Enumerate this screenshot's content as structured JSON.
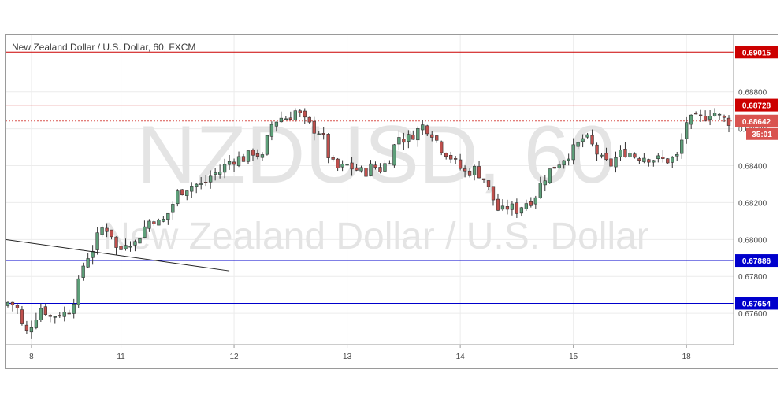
{
  "chart_data": {
    "type": "candlestick",
    "title": "New Zealand Dollar / U.S. Dollar, 60, FXCM",
    "watermark_symbol": "NZDUSD, 60",
    "watermark_name": "New Zealand Dollar / U.S. Dollar",
    "ylim": [
      0.6743,
      0.6911
    ],
    "y_ticks": [
      {
        "value": 0.676,
        "label": "0.67600"
      },
      {
        "value": 0.678,
        "label": "0.67800"
      },
      {
        "value": 0.68,
        "label": "0.68000"
      },
      {
        "value": 0.682,
        "label": "0.68200"
      },
      {
        "value": 0.684,
        "label": "0.68400"
      },
      {
        "value": 0.686,
        "label": "0.68600"
      },
      {
        "value": 0.688,
        "label": "0.68800"
      }
    ],
    "x_ticks": [
      {
        "index": 5,
        "label": "8"
      },
      {
        "index": 24,
        "label": "11"
      },
      {
        "index": 48,
        "label": "12"
      },
      {
        "index": 72,
        "label": "13"
      },
      {
        "index": 96,
        "label": "14"
      },
      {
        "index": 120,
        "label": "15"
      },
      {
        "index": 144,
        "label": "18"
      }
    ],
    "bar_count": 154,
    "anchors": [
      [
        0,
        0.6766
      ],
      [
        2,
        0.6764
      ],
      [
        4,
        0.6748
      ],
      [
        6,
        0.6756
      ],
      [
        8,
        0.6764
      ],
      [
        10,
        0.6758
      ],
      [
        12,
        0.676
      ],
      [
        14,
        0.676
      ],
      [
        16,
        0.677
      ],
      [
        18,
        0.6788
      ],
      [
        20,
        0.6795
      ],
      [
        22,
        0.6806
      ],
      [
        24,
        0.6806
      ],
      [
        26,
        0.6792
      ],
      [
        28,
        0.68
      ],
      [
        30,
        0.6798
      ],
      [
        32,
        0.6806
      ],
      [
        34,
        0.6812
      ],
      [
        36,
        0.6808
      ],
      [
        38,
        0.6815
      ],
      [
        40,
        0.6825
      ],
      [
        42,
        0.6828
      ],
      [
        44,
        0.683
      ],
      [
        46,
        0.6829
      ],
      [
        48,
        0.6835
      ],
      [
        50,
        0.6837
      ],
      [
        52,
        0.6842
      ],
      [
        54,
        0.6844
      ],
      [
        56,
        0.6844
      ],
      [
        58,
        0.6848
      ],
      [
        60,
        0.6844
      ],
      [
        62,
        0.6862
      ],
      [
        64,
        0.6866
      ],
      [
        66,
        0.6866
      ],
      [
        68,
        0.687
      ],
      [
        70,
        0.6864
      ],
      [
        72,
        0.686
      ],
      [
        74,
        0.6858
      ],
      [
        76,
        0.6842
      ],
      [
        78,
        0.6838
      ],
      [
        80,
        0.684
      ],
      [
        82,
        0.6838
      ],
      [
        84,
        0.6836
      ],
      [
        86,
        0.684
      ],
      [
        88,
        0.6838
      ],
      [
        90,
        0.6844
      ],
      [
        92,
        0.6856
      ],
      [
        94,
        0.6854
      ],
      [
        96,
        0.6858
      ],
      [
        98,
        0.6862
      ],
      [
        100,
        0.6858
      ],
      [
        102,
        0.685
      ],
      [
        104,
        0.6846
      ],
      [
        106,
        0.684
      ],
      [
        108,
        0.6836
      ],
      [
        110,
        0.6838
      ],
      [
        112,
        0.6834
      ],
      [
        114,
        0.6824
      ],
      [
        116,
        0.6814
      ],
      [
        118,
        0.6818
      ],
      [
        120,
        0.6816
      ],
      [
        122,
        0.682
      ],
      [
        124,
        0.6822
      ],
      [
        126,
        0.6832
      ],
      [
        128,
        0.6838
      ],
      [
        130,
        0.6842
      ],
      [
        132,
        0.6846
      ],
      [
        134,
        0.685
      ],
      [
        136,
        0.6856
      ],
      [
        138,
        0.685
      ],
      [
        140,
        0.6843
      ],
      [
        142,
        0.684
      ],
      [
        144,
        0.6846
      ],
      [
        146,
        0.6848
      ],
      [
        148,
        0.6845
      ],
      [
        150,
        0.6845
      ],
      [
        152,
        0.6844
      ],
      [
        154,
        0.6843
      ],
      [
        156,
        0.6843
      ],
      [
        158,
        0.6845
      ],
      [
        160,
        0.6864
      ],
      [
        162,
        0.6865
      ],
      [
        164,
        0.6866
      ],
      [
        166,
        0.687
      ],
      [
        168,
        0.6866
      ],
      [
        170,
        0.6864
      ]
    ],
    "horizontal_levels": [
      {
        "value": 0.69015,
        "label": "0.69015",
        "color": "#cc0000"
      },
      {
        "value": 0.68728,
        "label": "0.68728",
        "color": "#cc0000"
      },
      {
        "value": 0.67886,
        "label": "0.67886",
        "color": "#0000cc"
      },
      {
        "value": 0.67654,
        "label": "0.67654",
        "color": "#0000cc"
      }
    ],
    "current_price": {
      "value": 0.68642,
      "label": "0.68642",
      "color": "#d9534f"
    },
    "countdown": {
      "label": "35:01",
      "color": "#d9534f"
    },
    "trendline": {
      "start": [
        0,
        0.68
      ],
      "end": [
        47,
        0.6783
      ],
      "color": "#222222"
    },
    "colors": {
      "up": "#5ea07a",
      "down": "#c0504d",
      "wick": "#333333",
      "grid": "#ececec",
      "watermark": "#e4e4e4",
      "badge_red": "#e00000",
      "badge_blue": "#0000cc"
    },
    "grid": true
  }
}
